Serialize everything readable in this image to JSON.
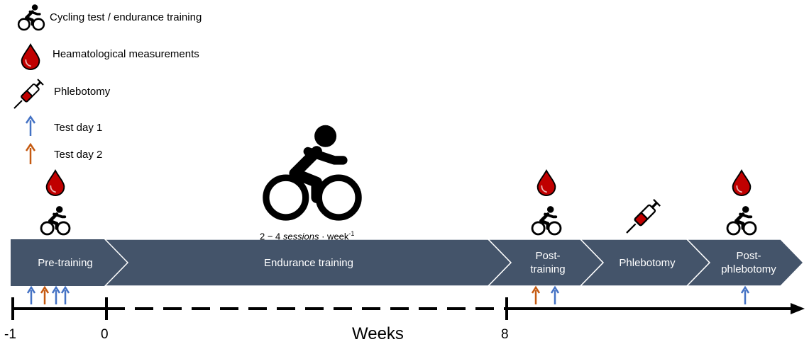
{
  "legend": {
    "cycling": "Cycling test / endurance training",
    "blood": "Heamatological measurements",
    "phlebotomy": "Phlebotomy",
    "test_day_1": "Test day 1",
    "test_day_2": "Test day 2"
  },
  "colors": {
    "phase_fill": "#44546a",
    "blood_red": "#c00000",
    "test_day_1": "#4472c4",
    "test_day_2": "#c55a11"
  },
  "phases": [
    {
      "label": "Pre-training"
    },
    {
      "label": "Endurance training"
    },
    {
      "label": "Post-\ntraining"
    },
    {
      "label": "Phlebotomy"
    },
    {
      "label": "Post-\nphlebotomy"
    }
  ],
  "training_frequency": {
    "range": "2 − 4",
    "unit": "sessions",
    "per": "· week",
    "exponent": "-1"
  },
  "timeline": {
    "ticks": [
      "-1",
      "0",
      "8"
    ],
    "axis_label": "Weeks"
  },
  "icons": {
    "cycling": "cyclist-icon",
    "blood": "blood-drop-icon",
    "phlebotomy": "syringe-icon",
    "arrow": "up-arrow-icon"
  }
}
